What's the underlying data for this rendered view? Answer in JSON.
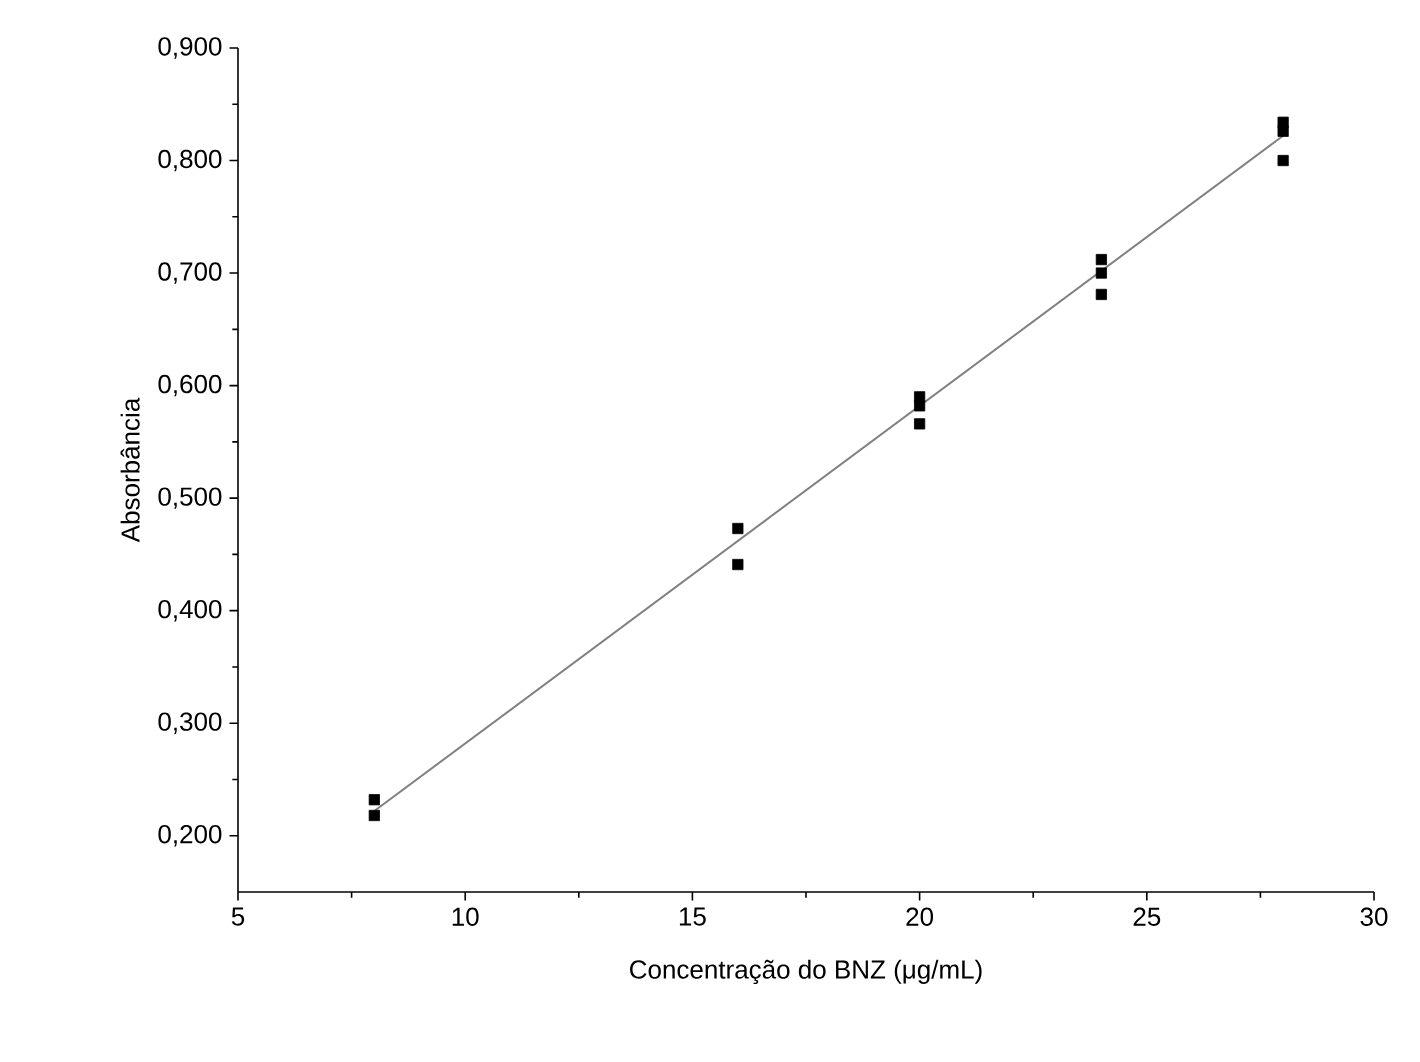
{
  "chart_data": {
    "type": "scatter",
    "xlabel": "Concentração do BNZ (μg/mL)",
    "ylabel": "Absorbância",
    "xlim": [
      5,
      30
    ],
    "ylim": [
      0.15,
      0.9
    ],
    "xticks": [
      5,
      10,
      15,
      20,
      25,
      30
    ],
    "yticks": [
      {
        "value": 0.2,
        "label": "0,200"
      },
      {
        "value": 0.3,
        "label": "0,300"
      },
      {
        "value": 0.4,
        "label": "0,400"
      },
      {
        "value": 0.5,
        "label": "0,500"
      },
      {
        "value": 0.6,
        "label": "0,600"
      },
      {
        "value": 0.7,
        "label": "0,700"
      },
      {
        "value": 0.8,
        "label": "0,800"
      },
      {
        "value": 0.9,
        "label": "0,900"
      }
    ],
    "grid": false,
    "marker": "square",
    "series": [
      {
        "color": "#000000",
        "x": [
          8,
          8,
          16,
          16,
          20,
          20,
          20,
          24,
          24,
          24,
          28,
          28,
          28
        ],
        "values": [
          0.232,
          0.218,
          0.473,
          0.441,
          0.59,
          0.582,
          0.566,
          0.712,
          0.7,
          0.681,
          0.834,
          0.826,
          0.8
        ]
      },
      {
        "type": "line",
        "color": "#808080",
        "marker": "none",
        "x": [
          8,
          28
        ],
        "values": [
          0.222,
          0.822
        ]
      }
    ]
  }
}
